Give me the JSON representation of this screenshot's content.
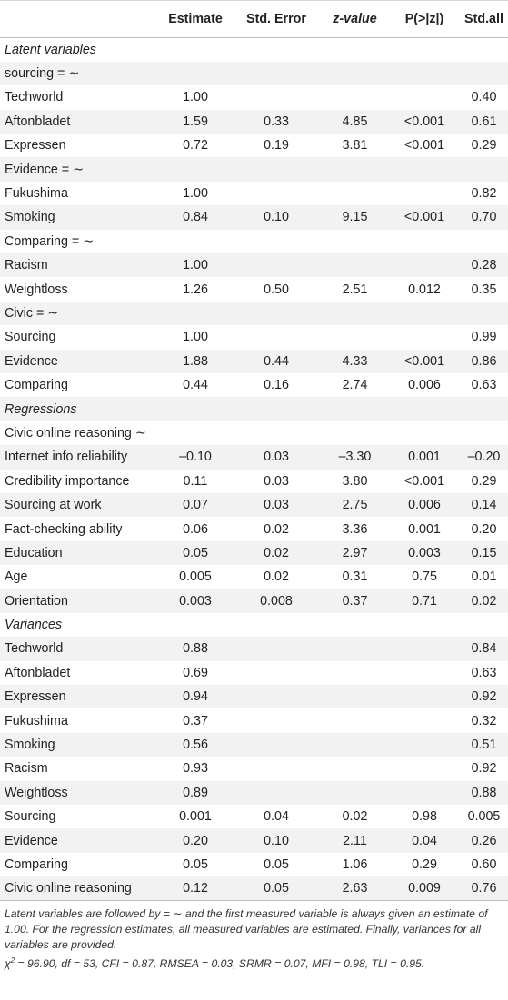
{
  "table": {
    "headers": [
      "",
      "Estimate",
      "Std. Error",
      "z-value",
      "P(>|z|)",
      "Std.all"
    ],
    "rows": [
      {
        "kind": "section",
        "label": "Latent variables"
      },
      {
        "kind": "group",
        "label": "sourcing = ∼"
      },
      {
        "kind": "data",
        "cells": [
          "Techworld",
          "1.00",
          "",
          "",
          "",
          "0.40"
        ]
      },
      {
        "kind": "data",
        "cells": [
          "Aftonbladet",
          "1.59",
          "0.33",
          "4.85",
          "<0.001",
          "0.61"
        ]
      },
      {
        "kind": "data",
        "cells": [
          "Expressen",
          "0.72",
          "0.19",
          "3.81",
          "<0.001",
          "0.29"
        ]
      },
      {
        "kind": "group",
        "label": "Evidence = ∼"
      },
      {
        "kind": "data",
        "cells": [
          "Fukushima",
          "1.00",
          "",
          "",
          "",
          "0.82"
        ]
      },
      {
        "kind": "data",
        "cells": [
          "Smoking",
          "0.84",
          "0.10",
          "9.15",
          "<0.001",
          "0.70"
        ]
      },
      {
        "kind": "group",
        "label": "Comparing = ∼"
      },
      {
        "kind": "data",
        "cells": [
          "Racism",
          "1.00",
          "",
          "",
          "",
          "0.28"
        ]
      },
      {
        "kind": "data",
        "cells": [
          "Weightloss",
          "1.26",
          "0.50",
          "2.51",
          "0.012",
          "0.35"
        ]
      },
      {
        "kind": "group",
        "label": "Civic = ∼"
      },
      {
        "kind": "data",
        "cells": [
          "Sourcing",
          "1.00",
          "",
          "",
          "",
          "0.99"
        ]
      },
      {
        "kind": "data",
        "cells": [
          "Evidence",
          "1.88",
          "0.44",
          "4.33",
          "<0.001",
          "0.86"
        ]
      },
      {
        "kind": "data",
        "cells": [
          "Comparing",
          "0.44",
          "0.16",
          "2.74",
          "0.006",
          "0.63"
        ]
      },
      {
        "kind": "section",
        "label": "Regressions"
      },
      {
        "kind": "group",
        "label": "Civic online reasoning ∼"
      },
      {
        "kind": "data",
        "cells": [
          "Internet info reliability",
          "–0.10",
          "0.03",
          "–3.30",
          "0.001",
          "–0.20"
        ]
      },
      {
        "kind": "data",
        "cells": [
          "Credibility importance",
          "0.11",
          "0.03",
          "3.80",
          "<0.001",
          "0.29"
        ]
      },
      {
        "kind": "data",
        "cells": [
          "Sourcing at work",
          "0.07",
          "0.03",
          "2.75",
          "0.006",
          "0.14"
        ]
      },
      {
        "kind": "data",
        "cells": [
          "Fact-checking ability",
          "0.06",
          "0.02",
          "3.36",
          "0.001",
          "0.20"
        ]
      },
      {
        "kind": "data",
        "cells": [
          "Education",
          "0.05",
          "0.02",
          "2.97",
          "0.003",
          "0.15"
        ]
      },
      {
        "kind": "data",
        "cells": [
          "Age",
          "0.005",
          "0.02",
          "0.31",
          "0.75",
          "0.01"
        ]
      },
      {
        "kind": "data",
        "cells": [
          "Orientation",
          "0.003",
          "0.008",
          "0.37",
          "0.71",
          "0.02"
        ]
      },
      {
        "kind": "section",
        "label": "Variances"
      },
      {
        "kind": "data",
        "cells": [
          "Techworld",
          "0.88",
          "",
          "",
          "",
          "0.84"
        ]
      },
      {
        "kind": "data",
        "cells": [
          "Aftonbladet",
          "0.69",
          "",
          "",
          "",
          "0.63"
        ]
      },
      {
        "kind": "data",
        "cells": [
          "Expressen",
          "0.94",
          "",
          "",
          "",
          "0.92"
        ]
      },
      {
        "kind": "data",
        "cells": [
          "Fukushima",
          "0.37",
          "",
          "",
          "",
          "0.32"
        ]
      },
      {
        "kind": "data",
        "cells": [
          "Smoking",
          "0.56",
          "",
          "",
          "",
          "0.51"
        ]
      },
      {
        "kind": "data",
        "cells": [
          "Racism",
          "0.93",
          "",
          "",
          "",
          "0.92"
        ]
      },
      {
        "kind": "data",
        "cells": [
          "Weightloss",
          "0.89",
          "",
          "",
          "",
          "0.88"
        ]
      },
      {
        "kind": "data",
        "cells": [
          "Sourcing",
          "0.001",
          "0.04",
          "0.02",
          "0.98",
          "0.005"
        ]
      },
      {
        "kind": "data",
        "cells": [
          "Evidence",
          "0.20",
          "0.10",
          "2.11",
          "0.04",
          "0.26"
        ]
      },
      {
        "kind": "data",
        "cells": [
          "Comparing",
          "0.05",
          "0.05",
          "1.06",
          "0.29",
          "0.60"
        ]
      },
      {
        "kind": "data",
        "cells": [
          "Civic online reasoning",
          "0.12",
          "0.05",
          "2.63",
          "0.009",
          "0.76"
        ]
      }
    ]
  },
  "notes": {
    "line1": "Latent variables are followed by = ∼ and the first measured variable is always given an estimate of 1.00. For the regression estimates, all measured variables are estimated. Finally, variances for all variables are provided.",
    "fit_chi": "χ",
    "fit_sup": "2",
    "fit_rest": " = 96.90, df = 53, CFI = 0.87, RMSEA = 0.03, SRMR = 0.07, MFI = 0.98, TLI = 0.95."
  }
}
